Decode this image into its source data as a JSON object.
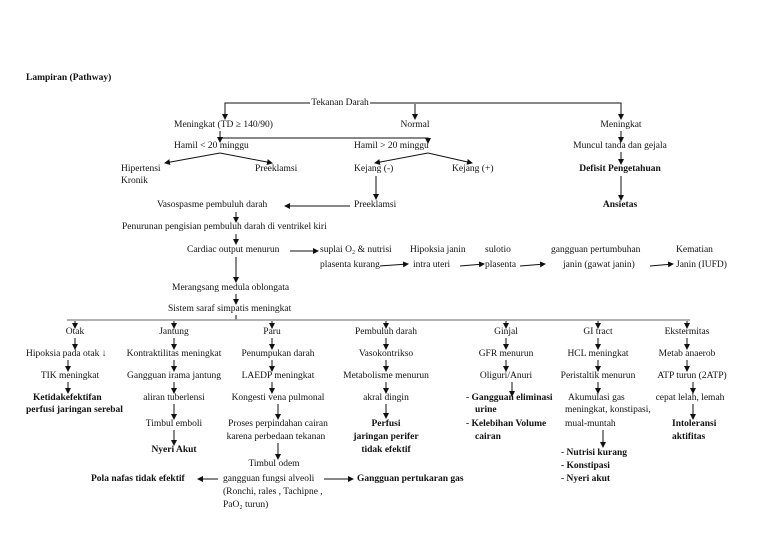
{
  "title": "Lampiran (Pathway)",
  "top": {
    "root": "Tekanan Darah",
    "left": "Meningkat (TD ≥ 140/90)",
    "mid": "Normal",
    "right": "Meningkat",
    "hamil_lt": "Hamil < 20 minggu",
    "hamil_gt": "Hamil > 20 minggu",
    "muncul": "Muncul  tanda dan gejala",
    "hipertensi_1": "Hipertensi",
    "hipertensi_2": "Kronik",
    "preeklamsi_a": "Preeklamsi",
    "kejang_neg": "Kejang (-)",
    "kejang_pos": "Kejang (+)",
    "defisit": "Defisit Pengetahuan",
    "vasospasme": "Vasospasme pembuluh darah",
    "preeklamsi_b": "Preeklamsi",
    "ansietas": "Ansietas"
  },
  "middle": {
    "penurunan": "Penurunan pengisian pembuluh darah di ventrikel kiri",
    "cardiac": "Cardiac output menurun",
    "suplai_1": "suplai O₂ & nutrisi",
    "suplai_2": "plasenta kurang",
    "hipoksia_1": "Hipoksia janin",
    "hipoksia_2": "intra uteri",
    "sulotio_1": "sulotio",
    "sulotio_2": "plasenta",
    "gangguan_1": "gangguan pertumbuhan",
    "gangguan_2": "janin (gawat janin)",
    "kematian_1": "Kematian",
    "kematian_2": "Janin (IUFD)",
    "medula": "Merangsang medula oblongata",
    "simpatis": "Sistem saraf simpatis meningkat"
  },
  "columns": {
    "otak": [
      "Otak",
      "Hipoksia pada otak ↓",
      "TIK meningkat",
      "Ketidakefektifan",
      "perfusi jaringan serebal"
    ],
    "jantung": [
      "Jantung",
      "Kontraktilitas meningkat",
      "Gangguan irama jantung",
      "aliran tuberlensi",
      "Timbul emboli",
      "Nyeri Akut"
    ],
    "paru": [
      "Paru",
      "Penumpukan darah",
      "LAEDP meningkat",
      "Kongesti vena pulmonal",
      "Proses perpindahan cairan",
      "karena perbedaan tekanan",
      "Timbul odem",
      "gangguan fungsi alveoli",
      "(Ronchi, rales , Tachipne ,",
      "PaO₂ turun)",
      "Pola nafas tidak efektif",
      "Gangguan pertukaran gas"
    ],
    "pembuluh": [
      "Pembuluh darah",
      "Vasokontrikso",
      "Metabolisme menurun",
      "akral dingin",
      "Perfusi",
      "jaringan perifer",
      "tidak efektif"
    ],
    "ginjal": [
      "Ginjal",
      "GFR menurun",
      "Oliguri/Anuri",
      "-  Gangguan eliminasi",
      "urine",
      "-  Kelebihan Volume",
      "cairan"
    ],
    "gi": [
      "GI tract",
      "HCL meningkat",
      "Peristaltik menurun",
      "Akumulasi gas",
      "meningkat, konstipasi,",
      "mual-muntah",
      "-  Nutrisi kurang",
      "-  Konstipasi",
      "-  Nyeri akut"
    ],
    "ekstremitas": [
      "Ekstermitas",
      "Metab anaerob",
      "ATP turun (2ATP)",
      "cepat lelah, lemah",
      "Intoleransi",
      "aktifitas"
    ]
  }
}
